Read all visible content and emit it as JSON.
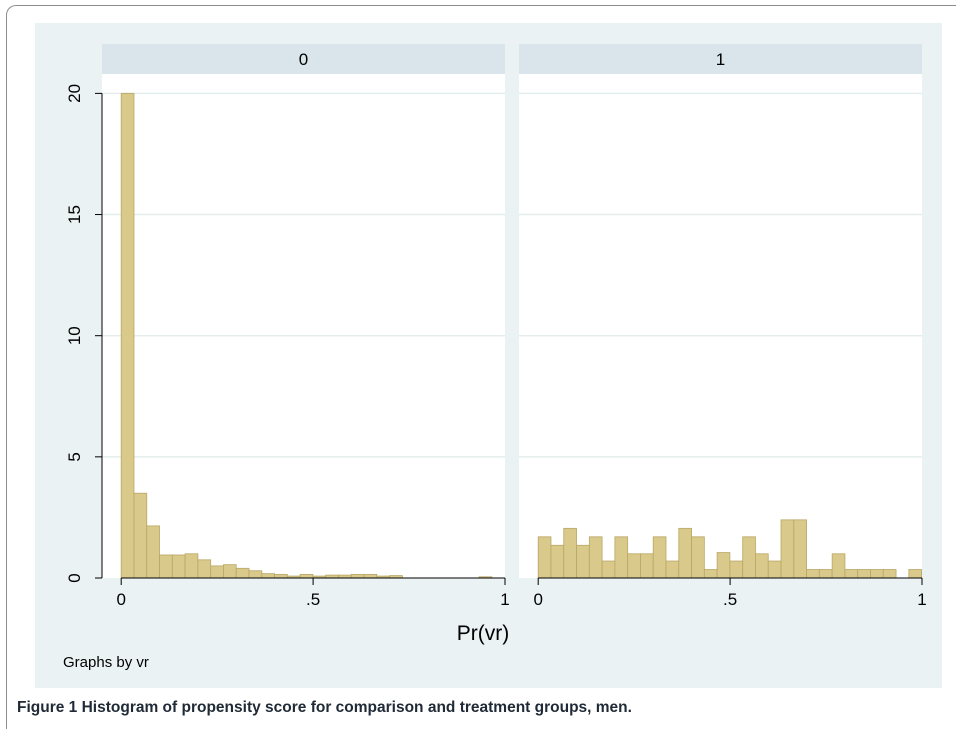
{
  "caption": {
    "label": "Figure 1",
    "text": " Histogram of propensity score for comparison and treatment groups, men."
  },
  "colors": {
    "region_bg": "#eaf2f3",
    "panel_bg": "#ffffff",
    "strip_bg": "#d9e5eb",
    "grid": "#e4eded",
    "bar_fill": "#d9c98a",
    "bar_stroke": "#b9a765",
    "axis": "#000000",
    "caption_text": "#1f2a36"
  },
  "chart_data": {
    "type": "bar",
    "subtype": "histogram-by-group",
    "xlabel": "Pr(vr)",
    "ylabel": "",
    "note": "Graphs by vr",
    "ylim": [
      0,
      20.8
    ],
    "yticks": [
      0,
      5,
      10,
      15,
      20
    ],
    "ytick_labels": [
      "0",
      "5",
      "10",
      "15",
      "20"
    ],
    "xlim": [
      -0.05,
      1.0
    ],
    "xticks": [
      0,
      0.5,
      1
    ],
    "xtick_labels": [
      "0",
      ".5",
      "1"
    ],
    "grid": true,
    "bin_width": 0.0333,
    "panels": [
      {
        "title": "0",
        "bin_start": 0,
        "values": [
          20.0,
          3.5,
          2.15,
          0.95,
          0.95,
          1.0,
          0.75,
          0.5,
          0.55,
          0.4,
          0.3,
          0.18,
          0.15,
          0.08,
          0.15,
          0.08,
          0.12,
          0.12,
          0.15,
          0.15,
          0.08,
          0.1,
          0,
          0,
          0,
          0,
          0,
          0,
          0.05,
          0,
          0,
          0
        ]
      },
      {
        "title": "1",
        "bin_start": 0,
        "values": [
          1.7,
          1.35,
          2.05,
          1.35,
          1.7,
          0.7,
          1.7,
          1.0,
          1.0,
          1.7,
          0.7,
          2.05,
          1.7,
          0.35,
          1.05,
          0.7,
          1.7,
          1.0,
          0.7,
          2.4,
          2.4,
          0.35,
          0.35,
          1.0,
          0.35,
          0.35,
          0.35,
          0.35,
          0,
          0.35
        ]
      }
    ]
  }
}
